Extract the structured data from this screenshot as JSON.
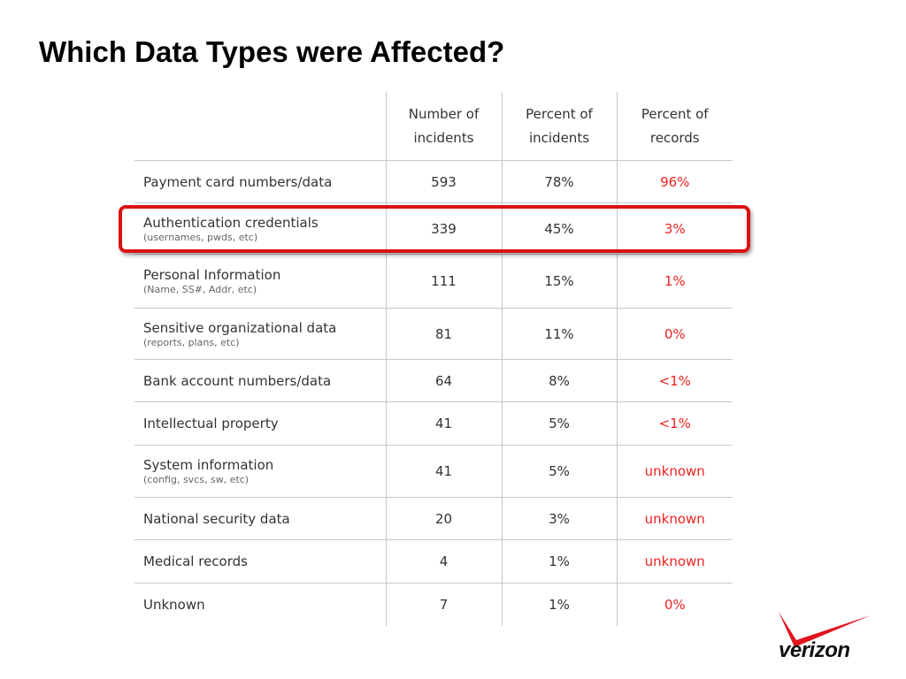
{
  "title": "Which Data Types were Affected?",
  "table": {
    "headers": {
      "col1": "",
      "col2_line1": "Number of",
      "col2_line2": "incidents",
      "col3_line1": "Percent of",
      "col3_line2": "incidents",
      "col4_line1": "Percent of",
      "col4_line2": "records"
    },
    "rows": [
      {
        "label": "Payment card numbers/data",
        "sub": "",
        "incidents": "593",
        "pct_incidents": "78%",
        "pct_records": "96%"
      },
      {
        "label": "Authentication credentials",
        "sub": "(usernames, pwds, etc)",
        "incidents": "339",
        "pct_incidents": "45%",
        "pct_records": "3%"
      },
      {
        "label": "Personal Information",
        "sub": "(Name, SS#, Addr, etc)",
        "incidents": "111",
        "pct_incidents": "15%",
        "pct_records": "1%"
      },
      {
        "label": "Sensitive organizational data",
        "sub": "(reports, plans, etc)",
        "incidents": "81",
        "pct_incidents": "11%",
        "pct_records": "0%"
      },
      {
        "label": "Bank account numbers/data",
        "sub": "",
        "incidents": "64",
        "pct_incidents": "8%",
        "pct_records": "<1%"
      },
      {
        "label": "Intellectual property",
        "sub": "",
        "incidents": "41",
        "pct_incidents": "5%",
        "pct_records": "<1%"
      },
      {
        "label": "System information",
        "sub": "(config, svcs, sw, etc)",
        "incidents": "41",
        "pct_incidents": "5%",
        "pct_records": "unknown"
      },
      {
        "label": "National security data",
        "sub": "",
        "incidents": "20",
        "pct_incidents": "3%",
        "pct_records": "unknown"
      },
      {
        "label": "Medical records",
        "sub": "",
        "incidents": "4",
        "pct_incidents": "1%",
        "pct_records": "unknown"
      },
      {
        "label": "Unknown",
        "sub": "",
        "incidents": "7",
        "pct_incidents": "1%",
        "pct_records": "0%"
      }
    ]
  },
  "highlight_row": "Authentication credentials",
  "logo": {
    "text": "verizon",
    "mark": "check-mark-icon"
  },
  "colors": {
    "highlight": "#dd1111",
    "records_text": "#ee2222",
    "rule": "#c8c8c8"
  }
}
